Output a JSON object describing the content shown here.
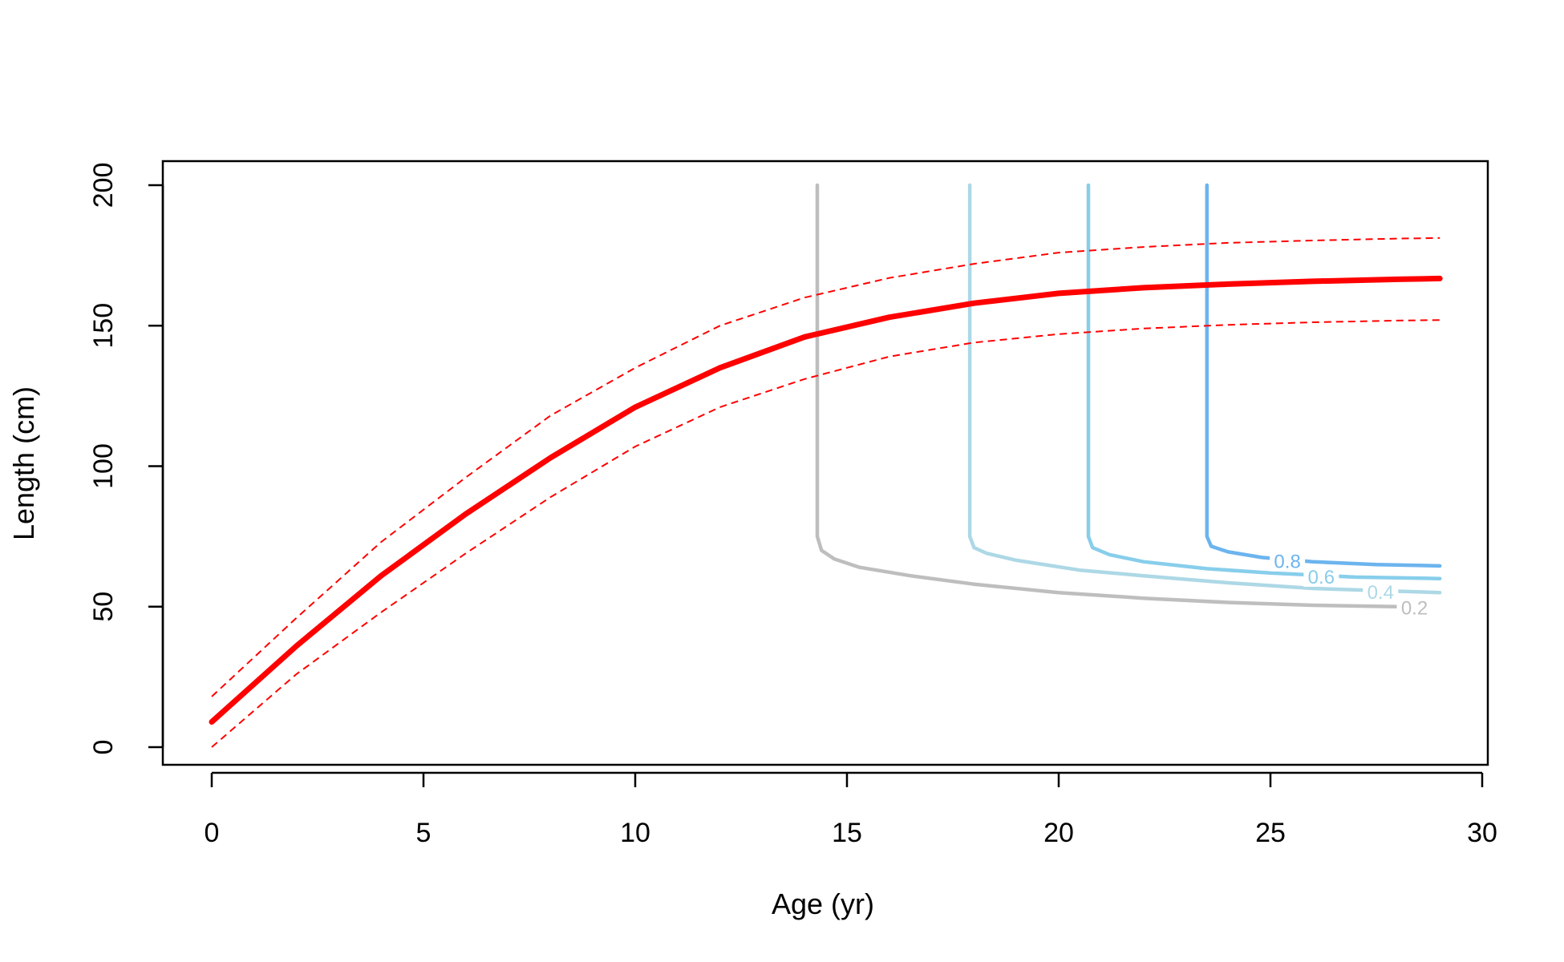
{
  "chart_data": {
    "type": "line",
    "title": "",
    "xlabel": "Age (yr)",
    "ylabel": "Length (cm)",
    "xlim": [
      0,
      30
    ],
    "ylim": [
      0,
      200
    ],
    "x_ticks": [
      0,
      5,
      10,
      15,
      20,
      25,
      30
    ],
    "y_ticks": [
      0,
      50,
      100,
      150,
      200
    ],
    "grid": false,
    "legend": "none",
    "growth_curve": {
      "color": "#ff0000",
      "x": [
        0,
        2,
        4,
        6,
        8,
        10,
        12,
        14,
        16,
        18,
        20,
        22,
        24,
        26,
        28,
        29
      ],
      "mean": [
        9,
        36,
        61,
        83,
        103,
        121,
        135,
        146,
        153,
        158,
        161.5,
        163.5,
        164.8,
        165.8,
        166.5,
        166.8
      ],
      "upper": [
        18,
        46,
        73,
        96,
        118,
        135,
        150,
        160,
        167,
        172,
        176,
        178,
        179.5,
        180.3,
        181,
        181.2
      ],
      "lower": [
        0,
        26,
        48,
        69,
        89,
        107,
        121,
        131,
        139,
        144,
        147,
        149,
        150.3,
        151.2,
        151.8,
        152
      ]
    },
    "contours": [
      {
        "label": "0.2",
        "color": "#bebebe",
        "x": [
          14.3,
          14.3,
          14.3,
          14.4,
          14.7,
          15.3,
          16.5,
          18,
          20,
          22,
          24,
          26,
          28
        ],
        "y": [
          200,
          150,
          75,
          70,
          67,
          64,
          61,
          58,
          55,
          53,
          51.5,
          50.5,
          50
        ]
      },
      {
        "label": "0.4",
        "color": "#add8e6",
        "x": [
          17.9,
          17.9,
          17.9,
          18.0,
          18.3,
          19,
          20.5,
          22,
          24,
          26,
          28,
          29
        ],
        "y": [
          200,
          150,
          75,
          71,
          69,
          66.5,
          63,
          61,
          58.5,
          56.5,
          55.5,
          55
        ]
      },
      {
        "label": "0.6",
        "color": "#87ceeb",
        "x": [
          20.7,
          20.7,
          20.7,
          20.8,
          21.2,
          22,
          23.5,
          25,
          27,
          29
        ],
        "y": [
          200,
          150,
          75,
          71,
          68.5,
          66,
          63.5,
          62,
          60.5,
          60
        ]
      },
      {
        "label": "0.8",
        "color": "#6cb4ee",
        "x": [
          23.5,
          23.5,
          23.5,
          23.6,
          24,
          24.8,
          26,
          27.5,
          29
        ],
        "y": [
          200,
          150,
          75,
          71.5,
          69.5,
          67.5,
          66,
          65,
          64.5
        ]
      }
    ]
  }
}
